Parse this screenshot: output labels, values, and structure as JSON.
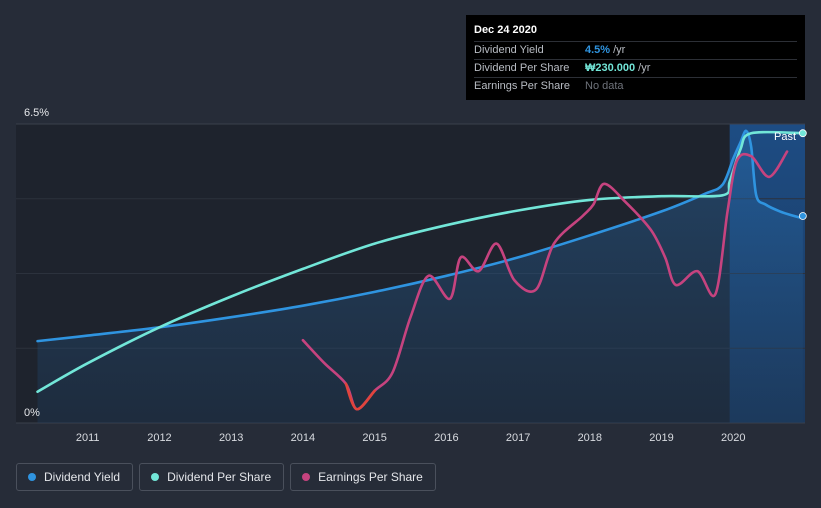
{
  "tooltip": {
    "date": "Dec 24 2020",
    "rows": [
      {
        "name": "Dividend Yield",
        "value": "4.5%",
        "unit": "/yr"
      },
      {
        "name": "Dividend Per Share",
        "value": "₩230.000",
        "unit": "/yr"
      },
      {
        "name": "Earnings Per Share",
        "value": "No data",
        "unit": ""
      }
    ]
  },
  "legend": {
    "items": [
      {
        "label": "Dividend Yield",
        "color": "#2f94e0"
      },
      {
        "label": "Dividend Per Share",
        "color": "#72e6d8"
      },
      {
        "label": "Earnings Per Share",
        "color": "#c6437f"
      }
    ]
  },
  "chart_data": {
    "type": "line",
    "y_top_label": "6.5%",
    "y_bottom_label": "0%",
    "past_label": "Past",
    "ylim": [
      0,
      6.5
    ],
    "xlim": [
      2010.0,
      2021.0
    ],
    "x_ticks": [
      "2011",
      "2012",
      "2013",
      "2014",
      "2015",
      "2016",
      "2017",
      "2018",
      "2019",
      "2020"
    ],
    "past_region_start": 2019.95,
    "series": [
      {
        "name": "Dividend Yield",
        "color": "#2f94e0",
        "area": true,
        "points": [
          [
            2010.3,
            1.78
          ],
          [
            2011.0,
            1.9
          ],
          [
            2012.0,
            2.08
          ],
          [
            2013.0,
            2.3
          ],
          [
            2014.0,
            2.55
          ],
          [
            2015.0,
            2.85
          ],
          [
            2016.0,
            3.2
          ],
          [
            2017.0,
            3.6
          ],
          [
            2018.0,
            4.08
          ],
          [
            2019.0,
            4.6
          ],
          [
            2019.6,
            4.98
          ],
          [
            2019.85,
            5.18
          ],
          [
            2020.0,
            5.75
          ],
          [
            2020.1,
            6.1
          ],
          [
            2020.18,
            6.35
          ],
          [
            2020.25,
            6.0
          ],
          [
            2020.32,
            4.95
          ],
          [
            2020.45,
            4.75
          ],
          [
            2020.65,
            4.6
          ],
          [
            2020.85,
            4.5
          ],
          [
            2020.97,
            4.45
          ]
        ]
      },
      {
        "name": "Dividend Per Share",
        "color": "#72e6d8",
        "points": [
          [
            2010.3,
            0.68
          ],
          [
            2011.0,
            1.3
          ],
          [
            2012.0,
            2.08
          ],
          [
            2013.0,
            2.75
          ],
          [
            2014.0,
            3.35
          ],
          [
            2015.0,
            3.9
          ],
          [
            2016.0,
            4.3
          ],
          [
            2017.0,
            4.62
          ],
          [
            2018.0,
            4.85
          ],
          [
            2019.0,
            4.93
          ],
          [
            2019.85,
            4.95
          ],
          [
            2019.95,
            5.25
          ],
          [
            2020.1,
            5.95
          ],
          [
            2020.25,
            6.3
          ],
          [
            2020.97,
            6.3
          ]
        ]
      },
      {
        "name": "Earnings Per Share",
        "color": "#c6437f",
        "points": [
          [
            2014.0,
            1.8
          ],
          [
            2014.3,
            1.3
          ],
          [
            2014.6,
            0.85
          ],
          [
            2014.75,
            0.3
          ],
          [
            2015.0,
            0.7
          ],
          [
            2015.25,
            1.1
          ],
          [
            2015.5,
            2.3
          ],
          [
            2015.75,
            3.2
          ],
          [
            2016.05,
            2.7
          ],
          [
            2016.2,
            3.6
          ],
          [
            2016.45,
            3.3
          ],
          [
            2016.7,
            3.9
          ],
          [
            2016.95,
            3.1
          ],
          [
            2017.25,
            2.9
          ],
          [
            2017.5,
            3.9
          ],
          [
            2017.9,
            4.5
          ],
          [
            2018.05,
            4.75
          ],
          [
            2018.2,
            5.2
          ],
          [
            2018.5,
            4.8
          ],
          [
            2018.85,
            4.2
          ],
          [
            2019.05,
            3.6
          ],
          [
            2019.2,
            3.0
          ],
          [
            2019.5,
            3.3
          ],
          [
            2019.75,
            2.8
          ],
          [
            2019.92,
            4.6
          ],
          [
            2020.05,
            5.7
          ],
          [
            2020.25,
            5.8
          ],
          [
            2020.5,
            5.35
          ],
          [
            2020.75,
            5.9
          ]
        ]
      }
    ],
    "end_markers": [
      {
        "series": "Dividend Yield",
        "x": 2020.97,
        "y": 4.5,
        "color": "#2f94e0"
      },
      {
        "series": "Dividend Per Share",
        "x": 2020.97,
        "y": 6.3,
        "color": "#72e6d8"
      }
    ]
  }
}
